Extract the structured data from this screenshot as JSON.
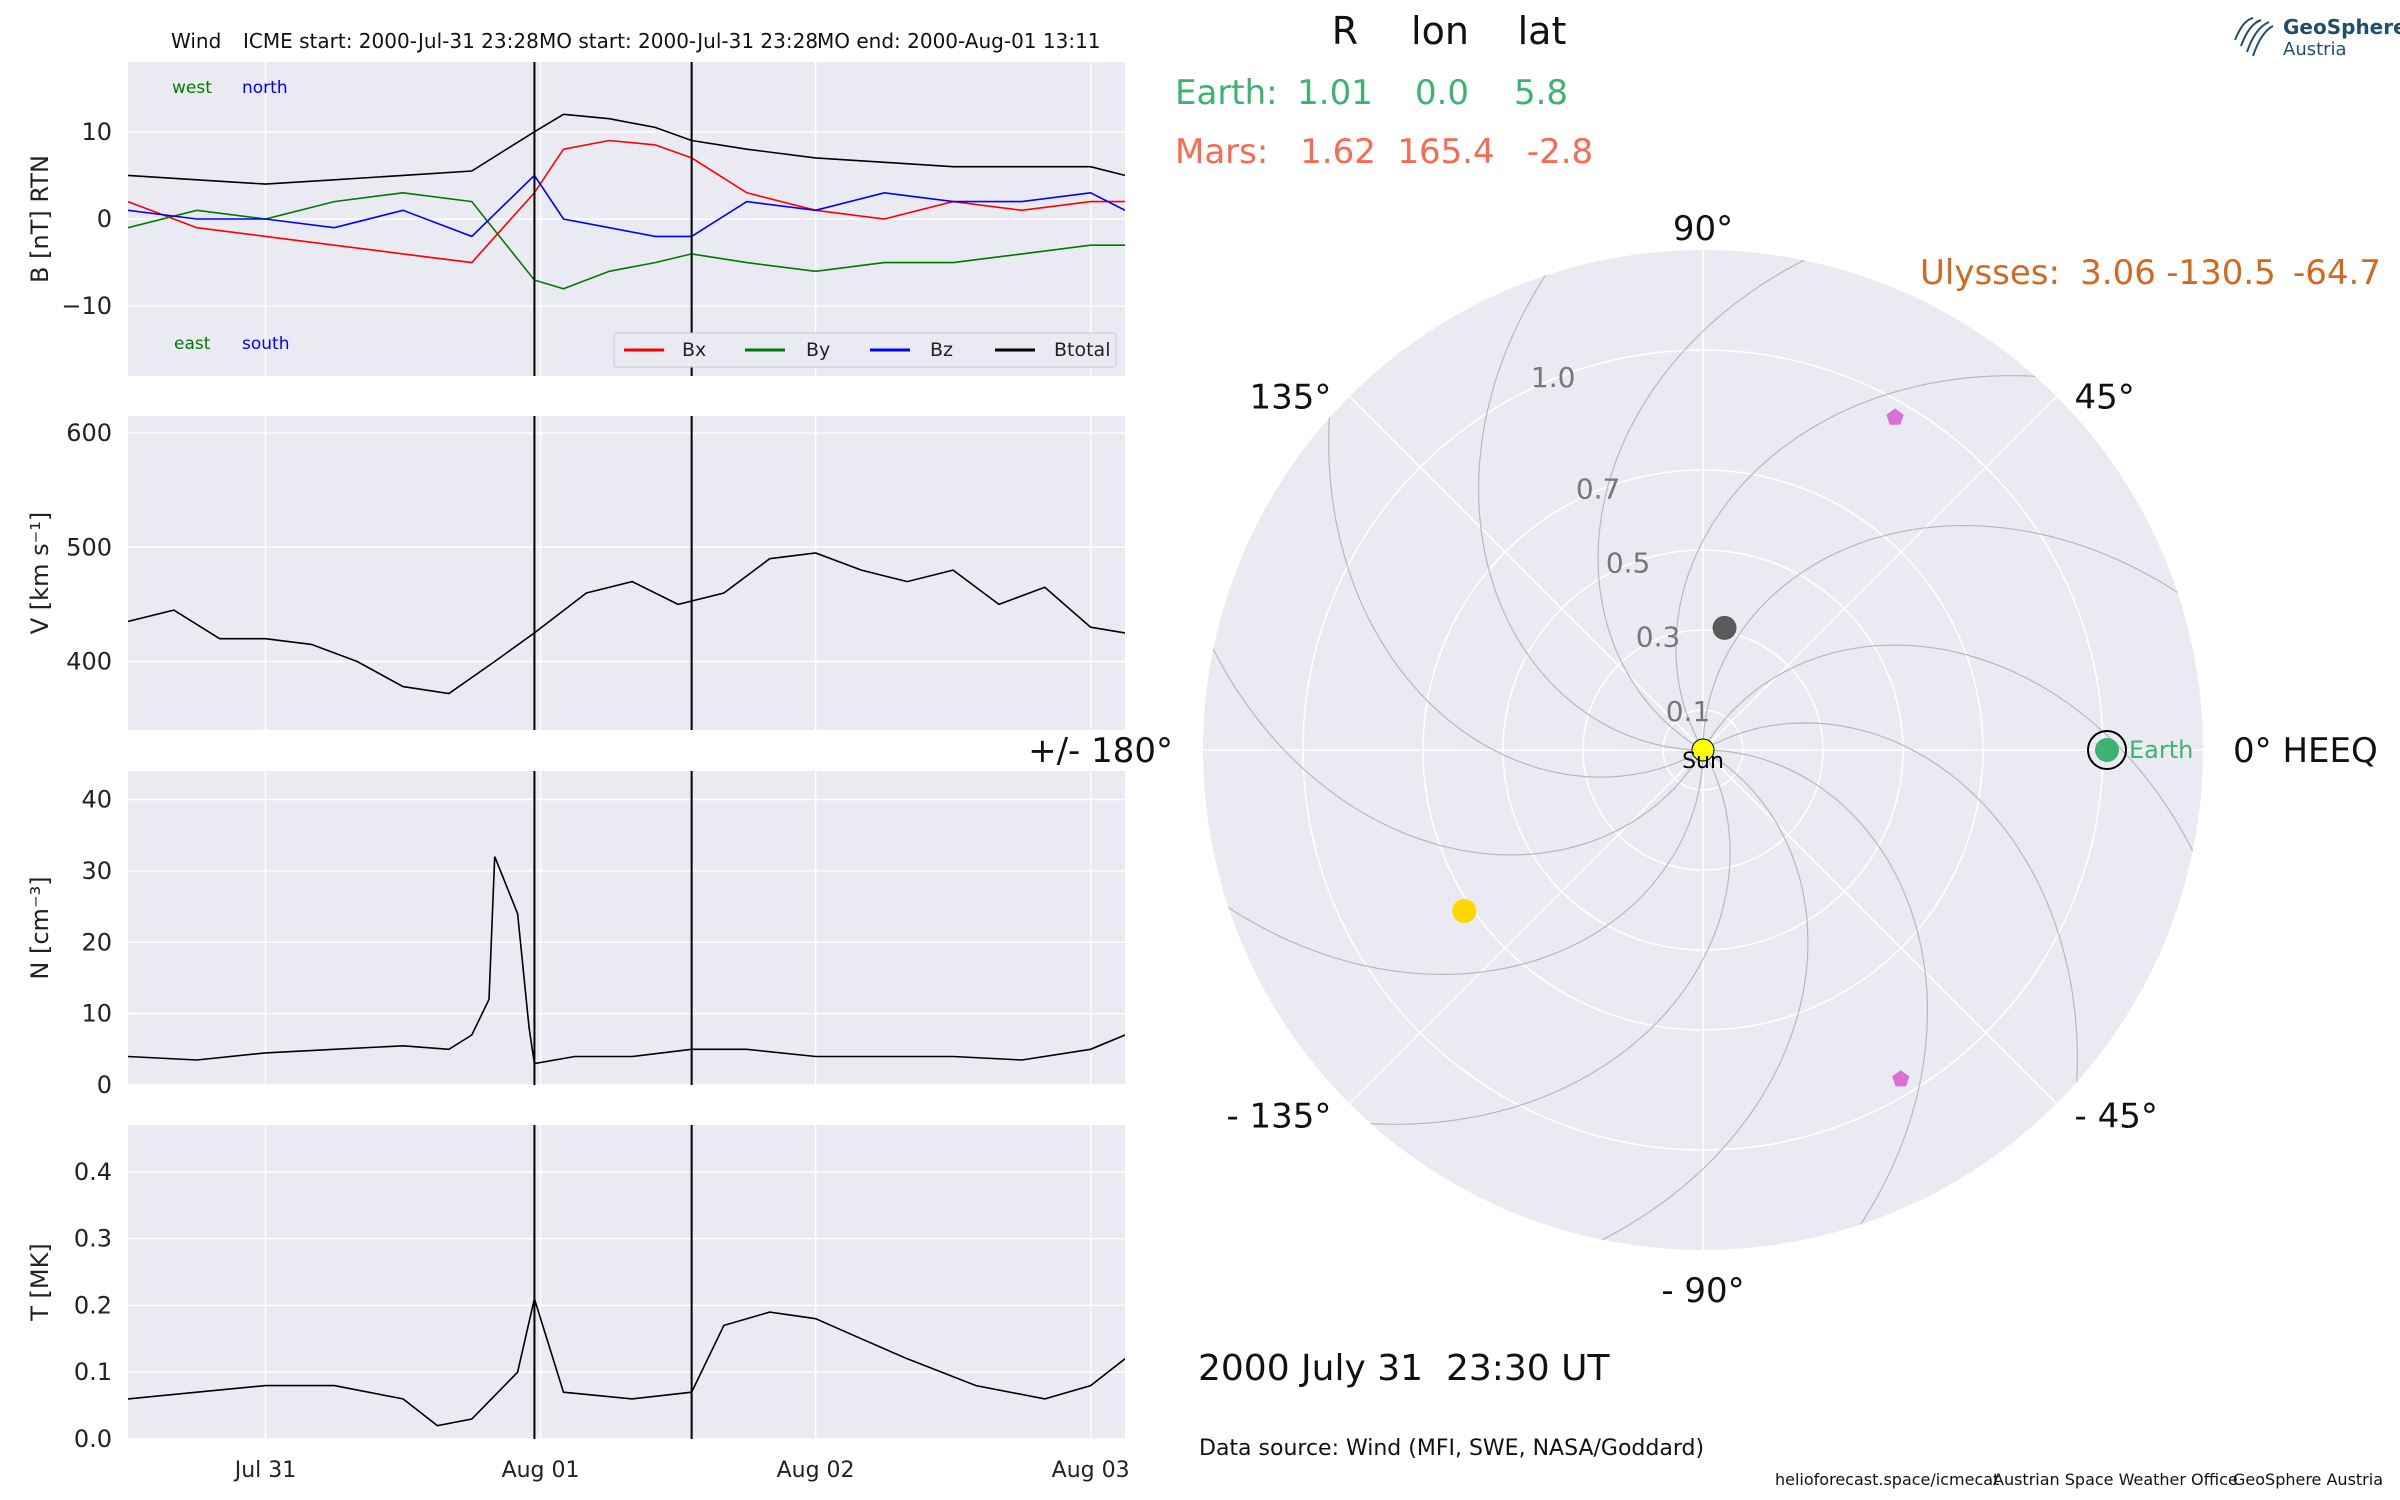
{
  "header": {
    "spacecraft": "Wind",
    "icme_start": "ICME start: 2000-Jul-31 23:28",
    "mo_start": "MO start: 2000-Jul-31 23:28",
    "mo_end": "MO end: 2000-Aug-01 13:11"
  },
  "chart_data": [
    {
      "type": "line",
      "ylabel": "B [nT] RTN",
      "ylim": [
        -18,
        18
      ],
      "yticks": [
        {
          "v": 10,
          "label": "10"
        },
        {
          "v": 0,
          "label": "0"
        },
        {
          "v": -10,
          "label": "−10"
        }
      ],
      "x_date_range": [
        "2000-07-30 12:00",
        "2000-08-03 03:00"
      ],
      "xticks": [
        {
          "t": "2000-07-31 00:00",
          "label": "Jul 31"
        },
        {
          "t": "2000-08-01 00:00",
          "label": "Aug 01"
        },
        {
          "t": "2000-08-02 00:00",
          "label": "Aug 02"
        },
        {
          "t": "2000-08-03 00:00",
          "label": "Aug 03"
        }
      ],
      "event_lines": [
        "2000-07-31 23:28",
        "2000-08-01 13:11"
      ],
      "corner_labels": {
        "west": "west",
        "north": "north",
        "east": "east",
        "south": "south"
      },
      "legend": [
        "Bx",
        "By",
        "Bz",
        "Btotal"
      ],
      "series": [
        {
          "name": "Bx",
          "color": "#ff0000",
          "x": [
            "2000-07-30 12:00",
            "2000-07-30 18:00",
            "2000-07-31 00:00",
            "2000-07-31 06:00",
            "2000-07-31 12:00",
            "2000-07-31 18:00",
            "2000-07-31 23:28",
            "2000-08-01 02:00",
            "2000-08-01 06:00",
            "2000-08-01 10:00",
            "2000-08-01 13:11",
            "2000-08-01 18:00",
            "2000-08-02 00:00",
            "2000-08-02 06:00",
            "2000-08-02 12:00",
            "2000-08-02 18:00",
            "2000-08-03 00:00",
            "2000-08-03 03:00"
          ],
          "y": [
            2,
            -1,
            -2,
            -3,
            -4,
            -5,
            3,
            8,
            9,
            8.5,
            7,
            3,
            1,
            0,
            2,
            1,
            2,
            2
          ]
        },
        {
          "name": "By",
          "color": "#007a00",
          "x": [
            "2000-07-30 12:00",
            "2000-07-30 18:00",
            "2000-07-31 00:00",
            "2000-07-31 06:00",
            "2000-07-31 12:00",
            "2000-07-31 18:00",
            "2000-07-31 23:28",
            "2000-08-01 02:00",
            "2000-08-01 06:00",
            "2000-08-01 10:00",
            "2000-08-01 13:11",
            "2000-08-01 18:00",
            "2000-08-02 00:00",
            "2000-08-02 06:00",
            "2000-08-02 12:00",
            "2000-08-02 18:00",
            "2000-08-03 00:00",
            "2000-08-03 03:00"
          ],
          "y": [
            -1,
            1,
            0,
            2,
            3,
            2,
            -7,
            -8,
            -6,
            -5,
            -4,
            -5,
            -6,
            -5,
            -5,
            -4,
            -3,
            -3
          ]
        },
        {
          "name": "Bz",
          "color": "#0000ff",
          "x": [
            "2000-07-30 12:00",
            "2000-07-30 18:00",
            "2000-07-31 00:00",
            "2000-07-31 06:00",
            "2000-07-31 12:00",
            "2000-07-31 18:00",
            "2000-07-31 23:28",
            "2000-08-01 02:00",
            "2000-08-01 06:00",
            "2000-08-01 10:00",
            "2000-08-01 13:11",
            "2000-08-01 18:00",
            "2000-08-02 00:00",
            "2000-08-02 06:00",
            "2000-08-02 12:00",
            "2000-08-02 18:00",
            "2000-08-03 00:00",
            "2000-08-03 03:00"
          ],
          "y": [
            1,
            0,
            0,
            -1,
            1,
            -2,
            5,
            0,
            -1,
            -2,
            -2,
            2,
            1,
            3,
            2,
            2,
            3,
            1
          ]
        },
        {
          "name": "Btotal",
          "color": "#000000",
          "x": [
            "2000-07-30 12:00",
            "2000-07-30 18:00",
            "2000-07-31 00:00",
            "2000-07-31 06:00",
            "2000-07-31 12:00",
            "2000-07-31 18:00",
            "2000-07-31 23:28",
            "2000-08-01 02:00",
            "2000-08-01 06:00",
            "2000-08-01 10:00",
            "2000-08-01 13:11",
            "2000-08-01 18:00",
            "2000-08-02 00:00",
            "2000-08-02 06:00",
            "2000-08-02 12:00",
            "2000-08-02 18:00",
            "2000-08-03 00:00",
            "2000-08-03 03:00"
          ],
          "y": [
            5,
            4.5,
            4,
            4.5,
            5,
            5.5,
            10,
            12,
            11.5,
            10.5,
            9,
            8,
            7,
            6.5,
            6,
            6,
            6,
            5
          ]
        }
      ]
    },
    {
      "type": "line",
      "ylabel": "V [km s⁻¹]",
      "ylim": [
        340,
        615
      ],
      "yticks": [
        {
          "v": 600,
          "label": "600"
        },
        {
          "v": 500,
          "label": "500"
        },
        {
          "v": 400,
          "label": "400"
        }
      ],
      "series": [
        {
          "name": "V",
          "color": "#000000",
          "x": [
            "2000-07-30 12:00",
            "2000-07-30 16:00",
            "2000-07-30 20:00",
            "2000-07-31 00:00",
            "2000-07-31 04:00",
            "2000-07-31 08:00",
            "2000-07-31 12:00",
            "2000-07-31 16:00",
            "2000-07-31 20:00",
            "2000-07-31 23:28",
            "2000-08-01 04:00",
            "2000-08-01 08:00",
            "2000-08-01 12:00",
            "2000-08-01 16:00",
            "2000-08-01 20:00",
            "2000-08-02 00:00",
            "2000-08-02 04:00",
            "2000-08-02 08:00",
            "2000-08-02 12:00",
            "2000-08-02 16:00",
            "2000-08-02 20:00",
            "2000-08-03 00:00",
            "2000-08-03 03:00"
          ],
          "y": [
            435,
            445,
            420,
            420,
            415,
            400,
            378,
            372,
            400,
            425,
            460,
            470,
            450,
            460,
            490,
            495,
            480,
            470,
            480,
            450,
            465,
            430,
            425
          ]
        }
      ]
    },
    {
      "type": "line",
      "ylabel": "N [cm⁻³]",
      "ylim": [
        0,
        44
      ],
      "yticks": [
        {
          "v": 40,
          "label": "40"
        },
        {
          "v": 30,
          "label": "30"
        },
        {
          "v": 20,
          "label": "20"
        },
        {
          "v": 10,
          "label": "10"
        },
        {
          "v": 0,
          "label": "0"
        }
      ],
      "series": [
        {
          "name": "N",
          "color": "#000000",
          "x": [
            "2000-07-30 12:00",
            "2000-07-30 18:00",
            "2000-07-31 00:00",
            "2000-07-31 06:00",
            "2000-07-31 12:00",
            "2000-07-31 16:00",
            "2000-07-31 18:00",
            "2000-07-31 19:30",
            "2000-07-31 20:00",
            "2000-07-31 21:00",
            "2000-07-31 22:00",
            "2000-07-31 23:00",
            "2000-07-31 23:28",
            "2000-08-01 03:00",
            "2000-08-01 08:00",
            "2000-08-01 13:11",
            "2000-08-01 18:00",
            "2000-08-02 00:00",
            "2000-08-02 06:00",
            "2000-08-02 12:00",
            "2000-08-02 18:00",
            "2000-08-03 00:00",
            "2000-08-03 03:00"
          ],
          "y": [
            4,
            3.5,
            4.5,
            5,
            5.5,
            5,
            7,
            12,
            32,
            28,
            24,
            8,
            3,
            4,
            4,
            5,
            5,
            4,
            4,
            4,
            3.5,
            5,
            7
          ]
        }
      ]
    },
    {
      "type": "line",
      "ylabel": "T [MK]",
      "ylim": [
        0,
        0.47
      ],
      "yticks": [
        {
          "v": 0.4,
          "label": "0.4"
        },
        {
          "v": 0.3,
          "label": "0.3"
        },
        {
          "v": 0.2,
          "label": "0.2"
        },
        {
          "v": 0.1,
          "label": "0.1"
        },
        {
          "v": 0.0,
          "label": "0.0"
        }
      ],
      "series": [
        {
          "name": "T",
          "color": "#000000",
          "x": [
            "2000-07-30 12:00",
            "2000-07-30 18:00",
            "2000-07-31 00:00",
            "2000-07-31 06:00",
            "2000-07-31 12:00",
            "2000-07-31 15:00",
            "2000-07-31 18:00",
            "2000-07-31 22:00",
            "2000-07-31 23:28",
            "2000-08-01 02:00",
            "2000-08-01 08:00",
            "2000-08-01 13:11",
            "2000-08-01 16:00",
            "2000-08-01 20:00",
            "2000-08-02 00:00",
            "2000-08-02 04:00",
            "2000-08-02 08:00",
            "2000-08-02 14:00",
            "2000-08-02 20:00",
            "2000-08-03 00:00",
            "2000-08-03 03:00"
          ],
          "y": [
            0.06,
            0.07,
            0.08,
            0.08,
            0.06,
            0.02,
            0.03,
            0.1,
            0.21,
            0.07,
            0.06,
            0.07,
            0.17,
            0.19,
            0.18,
            0.15,
            0.12,
            0.08,
            0.06,
            0.08,
            0.12
          ]
        }
      ]
    },
    {
      "type": "scatter",
      "subtype": "polar",
      "angular_labels": [
        "0° HEEQ",
        "45°",
        "90°",
        "135°",
        "+/- 180°",
        "- 135°",
        "- 90°",
        "- 45°"
      ],
      "radial_ticks": [
        {
          "r": 0.1,
          "label": "0.1"
        },
        {
          "r": 0.3,
          "label": "0.3"
        },
        {
          "r": 0.5,
          "label": "0.5"
        },
        {
          "r": 0.7,
          "label": "0.7"
        },
        {
          "r": 1.0,
          "label": "1.0"
        }
      ],
      "rlim": [
        0,
        1.25
      ],
      "points": [
        {
          "name": "Sun",
          "r": 0,
          "lon": 0,
          "color": "#ffff00",
          "label": "Sun"
        },
        {
          "name": "Earth",
          "r": 1.01,
          "lon": 0,
          "color": "#3cb371",
          "label": "Earth"
        },
        {
          "name": "Mercury",
          "r": 0.31,
          "lon": 80,
          "color": "#5a5a5a"
        },
        {
          "name": "Venus",
          "r": 0.72,
          "lon": -146,
          "color": "#ffd700"
        },
        {
          "name": "Pentagon-upper",
          "r": 0.96,
          "lon": 60,
          "color": "#da70d6"
        },
        {
          "name": "Pentagon-lower",
          "r": 0.96,
          "lon": -59,
          "color": "#da70d6"
        }
      ]
    }
  ],
  "planet_table": {
    "headers": [
      "R",
      "lon",
      "lat"
    ],
    "rows": [
      {
        "name": "Earth:",
        "R": "1.01",
        "lon": "0.0",
        "lat": "5.8",
        "color": "#3cb371"
      },
      {
        "name": "Mars:",
        "R": "1.62",
        "lon": "165.4",
        "lat": "-2.8",
        "color": "#fa6a50"
      }
    ],
    "ulysses": {
      "name": "Ulysses:",
      "R": "3.06",
      "lon": "-130.5",
      "lat": "-64.7",
      "color": "#d2691e"
    }
  },
  "datetime": "2000 July 31  23:30 UT",
  "data_source": "Data source: Wind (MFI, SWE, NASA/Goddard)",
  "footer": {
    "link": "helioforecast.space/icmecat",
    "office": "Austrian Space Weather Office",
    "org": "GeoSphere Austria"
  },
  "logo": {
    "line1": "GeoSphere",
    "line2": "Austria"
  }
}
